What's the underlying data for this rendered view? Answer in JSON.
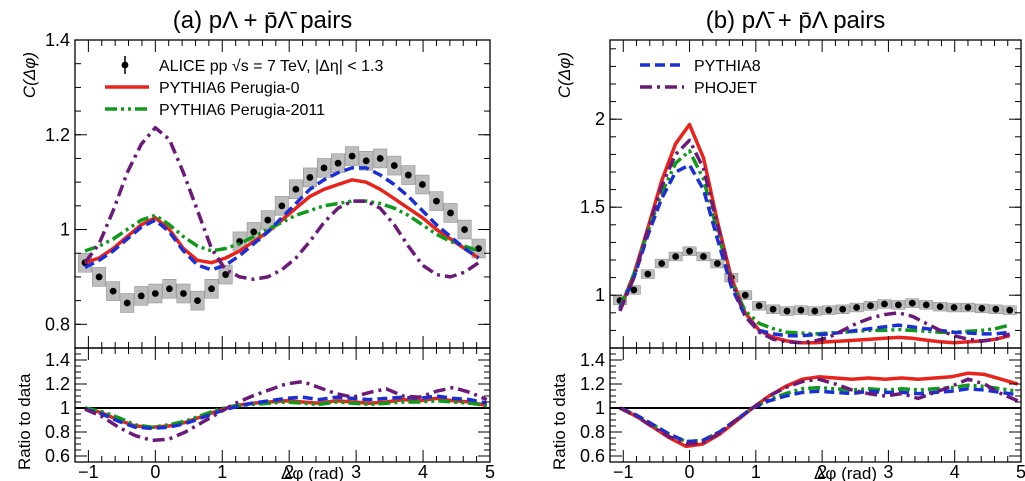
{
  "colors": {
    "data": "#000000",
    "perugia0": "#e8231c",
    "perugia2011": "#0f9a1a",
    "pythia8": "#1a2fd6",
    "phojet": "#6b1a7a",
    "syst_box": "#bdbdbd"
  },
  "chart_data": [
    {
      "type": "line",
      "panel": "main",
      "title": "(a) pΛ + p̄Λ̄ pairs",
      "xlabel": "Δφ (rad)",
      "ylabel": "C(Δφ)",
      "xlim": [
        -1.2,
        5.0
      ],
      "ylim": [
        0.75,
        1.4
      ],
      "xticks": [
        "−1",
        "0",
        "1",
        "2",
        "3",
        "4",
        "5"
      ],
      "yticks": [
        "0.8",
        "1",
        "1.2",
        "1.4"
      ],
      "legend": [
        "ALICE pp √s = 7 TeV, |Δη| < 1.3",
        "PYTHIA6 Perugia-0",
        "PYTHIA6 Perugia-2011"
      ],
      "legend_position": "top-left",
      "x": [
        -1.05,
        -0.84,
        -0.63,
        -0.42,
        -0.21,
        0.0,
        0.21,
        0.42,
        0.63,
        0.84,
        1.05,
        1.26,
        1.47,
        1.68,
        1.89,
        2.1,
        2.31,
        2.52,
        2.73,
        2.94,
        3.15,
        3.36,
        3.57,
        3.78,
        3.99,
        4.2,
        4.41,
        4.62,
        4.83
      ],
      "series": [
        {
          "name": "ALICE pp √s = 7 TeV, |Δη| < 1.3",
          "style": "points",
          "syst": 0.02,
          "values": [
            0.93,
            0.9,
            0.87,
            0.845,
            0.86,
            0.865,
            0.875,
            0.865,
            0.85,
            0.875,
            0.905,
            0.975,
            0.995,
            1.02,
            1.05,
            1.085,
            1.11,
            1.13,
            1.14,
            1.155,
            1.145,
            1.15,
            1.135,
            1.115,
            1.095,
            1.06,
            1.035,
            1.0,
            0.96
          ]
        },
        {
          "name": "PYTHIA6 Perugia-0",
          "style": "solid",
          "color_key": "perugia0",
          "values": [
            0.93,
            0.94,
            0.96,
            0.985,
            1.01,
            1.025,
            1.0,
            0.96,
            0.935,
            0.93,
            0.94,
            0.955,
            0.975,
            0.995,
            1.02,
            1.045,
            1.07,
            1.085,
            1.095,
            1.105,
            1.1,
            1.085,
            1.065,
            1.045,
            1.025,
            1.0,
            0.98,
            0.96,
            0.94
          ]
        },
        {
          "name": "PYTHIA6 Perugia-2011",
          "style": "dashdotdot",
          "color_key": "perugia2011",
          "values": [
            0.955,
            0.965,
            0.98,
            1.0,
            1.02,
            1.03,
            1.01,
            0.985,
            0.965,
            0.955,
            0.96,
            0.97,
            0.985,
            1.0,
            1.015,
            1.03,
            1.04,
            1.05,
            1.055,
            1.06,
            1.06,
            1.055,
            1.045,
            1.03,
            1.01,
            0.99,
            0.975,
            0.965,
            0.955
          ]
        },
        {
          "name": "PYTHIA8",
          "style": "dashed",
          "color_key": "pythia8",
          "values": [
            0.92,
            0.935,
            0.955,
            0.98,
            1.005,
            1.02,
            0.995,
            0.955,
            0.925,
            0.915,
            0.925,
            0.945,
            0.97,
            0.995,
            1.025,
            1.055,
            1.085,
            1.105,
            1.12,
            1.13,
            1.13,
            1.115,
            1.095,
            1.07,
            1.04,
            1.01,
            0.985,
            0.96,
            0.94
          ]
        },
        {
          "name": "PHOJET",
          "style": "dashdot",
          "color_key": "phojet",
          "values": [
            0.93,
            0.97,
            1.04,
            1.12,
            1.18,
            1.215,
            1.19,
            1.12,
            1.04,
            0.96,
            0.915,
            0.9,
            0.895,
            0.9,
            0.915,
            0.94,
            0.975,
            1.015,
            1.045,
            1.06,
            1.06,
            1.045,
            1.01,
            0.965,
            0.925,
            0.905,
            0.9,
            0.91,
            0.93
          ]
        }
      ]
    },
    {
      "type": "line",
      "panel": "ratio",
      "ylabel": "Ratio to data",
      "xlabel": "Δφ (rad)",
      "xlim": [
        -1.2,
        5.0
      ],
      "ylim": [
        0.55,
        1.5
      ],
      "yticks": [
        "0.6",
        "0.8",
        "1",
        "1.2",
        "1.4"
      ],
      "xticks": [
        "−1",
        "0",
        "1",
        "2",
        "3",
        "4",
        "5"
      ],
      "reference": 1.0,
      "x": [
        -1.05,
        -0.8,
        -0.55,
        -0.3,
        -0.05,
        0.2,
        0.45,
        0.7,
        0.95,
        1.2,
        1.45,
        1.7,
        1.95,
        2.2,
        2.45,
        2.7,
        2.95,
        3.2,
        3.45,
        3.7,
        3.95,
        4.2,
        4.45,
        4.7,
        4.95
      ],
      "series": [
        {
          "name": "PYTHIA6 Perugia-0",
          "style": "solid",
          "color_key": "perugia0",
          "values": [
            1.0,
            0.96,
            0.9,
            0.85,
            0.84,
            0.85,
            0.88,
            0.93,
            0.98,
            1.02,
            1.04,
            1.05,
            1.06,
            1.05,
            1.04,
            1.06,
            1.05,
            1.04,
            1.05,
            1.07,
            1.06,
            1.08,
            1.06,
            1.05,
            1.02
          ]
        },
        {
          "name": "PYTHIA6 Perugia-2011",
          "style": "dashdotdot",
          "color_key": "perugia2011",
          "values": [
            1.0,
            0.97,
            0.92,
            0.86,
            0.84,
            0.86,
            0.89,
            0.94,
            0.99,
            1.02,
            1.03,
            1.04,
            1.05,
            1.04,
            1.03,
            1.05,
            1.04,
            1.03,
            1.04,
            1.05,
            1.05,
            1.06,
            1.05,
            1.04,
            1.02
          ]
        },
        {
          "name": "PYTHIA8",
          "style": "dashed",
          "color_key": "pythia8",
          "values": [
            0.99,
            0.95,
            0.89,
            0.84,
            0.83,
            0.84,
            0.87,
            0.92,
            0.97,
            1.01,
            1.04,
            1.06,
            1.08,
            1.09,
            1.07,
            1.09,
            1.08,
            1.07,
            1.08,
            1.09,
            1.08,
            1.1,
            1.08,
            1.07,
            1.04
          ]
        },
        {
          "name": "PHOJET",
          "style": "dashdot",
          "color_key": "phojet",
          "values": [
            0.99,
            0.93,
            0.84,
            0.77,
            0.73,
            0.74,
            0.8,
            0.88,
            0.96,
            1.04,
            1.1,
            1.15,
            1.2,
            1.22,
            1.17,
            1.12,
            1.09,
            1.13,
            1.16,
            1.1,
            1.09,
            1.14,
            1.17,
            1.13,
            1.07
          ]
        }
      ]
    },
    {
      "type": "line",
      "panel": "main",
      "title": "(b) pΛ̄ + p̄Λ pairs",
      "xlabel": "Δφ (rad)",
      "ylabel": "C(Δφ)",
      "xlim": [
        -1.2,
        5.0
      ],
      "ylim": [
        0.7,
        2.45
      ],
      "xticks": [
        "−1",
        "0",
        "1",
        "2",
        "3",
        "4",
        "5"
      ],
      "yticks": [
        "1",
        "1.5",
        "2"
      ],
      "legend": [
        "PYTHIA8",
        "PHOJET"
      ],
      "legend_position": "top-left",
      "x": [
        -1.05,
        -0.84,
        -0.63,
        -0.42,
        -0.21,
        0.0,
        0.21,
        0.42,
        0.63,
        0.84,
        1.05,
        1.26,
        1.47,
        1.68,
        1.89,
        2.1,
        2.31,
        2.52,
        2.73,
        2.94,
        3.15,
        3.36,
        3.57,
        3.78,
        3.99,
        4.2,
        4.41,
        4.62,
        4.83
      ],
      "series": [
        {
          "name": "ALICE pp √s = 7 TeV, |Δη| < 1.3",
          "style": "points",
          "syst": 0.025,
          "values": [
            0.97,
            1.03,
            1.12,
            1.18,
            1.22,
            1.25,
            1.22,
            1.18,
            1.1,
            1.0,
            0.94,
            0.92,
            0.91,
            0.915,
            0.91,
            0.915,
            0.92,
            0.93,
            0.94,
            0.95,
            0.945,
            0.955,
            0.945,
            0.935,
            0.93,
            0.93,
            0.925,
            0.92,
            0.915
          ]
        },
        {
          "name": "PYTHIA6 Perugia-0",
          "style": "solid",
          "color_key": "perugia0",
          "values": [
            0.92,
            1.12,
            1.38,
            1.65,
            1.86,
            1.97,
            1.78,
            1.42,
            1.1,
            0.9,
            0.8,
            0.76,
            0.74,
            0.73,
            0.73,
            0.735,
            0.74,
            0.745,
            0.75,
            0.755,
            0.76,
            0.755,
            0.745,
            0.735,
            0.73,
            0.735,
            0.74,
            0.75,
            0.77
          ]
        },
        {
          "name": "PYTHIA6 Perugia-2011",
          "style": "dashdotdot",
          "color_key": "perugia2011",
          "values": [
            0.93,
            1.12,
            1.36,
            1.58,
            1.75,
            1.82,
            1.66,
            1.36,
            1.08,
            0.91,
            0.84,
            0.81,
            0.79,
            0.785,
            0.78,
            0.785,
            0.79,
            0.795,
            0.8,
            0.8,
            0.805,
            0.8,
            0.795,
            0.79,
            0.79,
            0.795,
            0.8,
            0.81,
            0.83
          ]
        },
        {
          "name": "PYTHIA8",
          "style": "dashed",
          "color_key": "pythia8",
          "values": [
            0.92,
            1.1,
            1.34,
            1.55,
            1.7,
            1.74,
            1.6,
            1.32,
            1.05,
            0.88,
            0.8,
            0.78,
            0.77,
            0.77,
            0.775,
            0.78,
            0.79,
            0.8,
            0.81,
            0.82,
            0.83,
            0.82,
            0.81,
            0.8,
            0.79,
            0.785,
            0.78,
            0.78,
            0.79
          ]
        },
        {
          "name": "PHOJET",
          "style": "dashdot",
          "color_key": "phojet",
          "values": [
            0.91,
            1.1,
            1.37,
            1.62,
            1.8,
            1.88,
            1.72,
            1.4,
            1.08,
            0.88,
            0.79,
            0.75,
            0.735,
            0.73,
            0.74,
            0.76,
            0.8,
            0.84,
            0.87,
            0.89,
            0.9,
            0.88,
            0.84,
            0.8,
            0.77,
            0.75,
            0.74,
            0.75,
            0.78
          ]
        }
      ]
    },
    {
      "type": "line",
      "panel": "ratio",
      "ylabel": "Ratio to data",
      "xlabel": "Δφ (rad)",
      "xlim": [
        -1.2,
        5.0
      ],
      "ylim": [
        0.55,
        1.5
      ],
      "yticks": [
        "0.6",
        "0.8",
        "1",
        "1.2",
        "1.4"
      ],
      "xticks": [
        "−1",
        "0",
        "1",
        "2",
        "3",
        "4",
        "5"
      ],
      "reference": 1.0,
      "x": [
        -1.05,
        -0.8,
        -0.55,
        -0.3,
        -0.05,
        0.2,
        0.45,
        0.7,
        0.95,
        1.2,
        1.45,
        1.7,
        1.95,
        2.2,
        2.45,
        2.7,
        2.95,
        3.2,
        3.45,
        3.7,
        3.95,
        4.2,
        4.45,
        4.7,
        4.95
      ],
      "series": [
        {
          "name": "PYTHIA6 Perugia-0",
          "style": "solid",
          "color_key": "perugia0",
          "values": [
            1.0,
            0.93,
            0.84,
            0.75,
            0.68,
            0.7,
            0.78,
            0.89,
            1.0,
            1.1,
            1.18,
            1.24,
            1.26,
            1.25,
            1.24,
            1.25,
            1.24,
            1.25,
            1.24,
            1.25,
            1.26,
            1.29,
            1.28,
            1.24,
            1.2
          ]
        },
        {
          "name": "PYTHIA6 Perugia-2011",
          "style": "dashdotdot",
          "color_key": "perugia2011",
          "values": [
            1.0,
            0.94,
            0.86,
            0.78,
            0.72,
            0.73,
            0.8,
            0.9,
            1.0,
            1.07,
            1.12,
            1.16,
            1.17,
            1.16,
            1.15,
            1.16,
            1.15,
            1.16,
            1.15,
            1.16,
            1.17,
            1.19,
            1.18,
            1.16,
            1.14
          ]
        },
        {
          "name": "PYTHIA8",
          "style": "dashed",
          "color_key": "pythia8",
          "values": [
            1.0,
            0.94,
            0.86,
            0.78,
            0.72,
            0.73,
            0.8,
            0.9,
            1.0,
            1.06,
            1.1,
            1.13,
            1.14,
            1.13,
            1.12,
            1.14,
            1.13,
            1.13,
            1.12,
            1.13,
            1.14,
            1.16,
            1.15,
            1.13,
            1.11
          ]
        },
        {
          "name": "PHOJET",
          "style": "dashdot",
          "color_key": "phojet",
          "values": [
            1.0,
            0.93,
            0.84,
            0.76,
            0.7,
            0.71,
            0.79,
            0.9,
            1.0,
            1.1,
            1.17,
            1.22,
            1.24,
            1.2,
            1.15,
            1.12,
            1.1,
            1.12,
            1.08,
            1.13,
            1.18,
            1.24,
            1.2,
            1.12,
            1.06
          ]
        }
      ]
    }
  ]
}
